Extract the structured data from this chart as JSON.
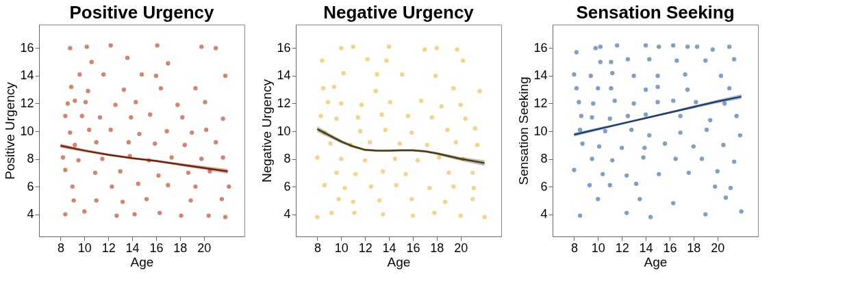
{
  "chart_data": [
    {
      "type": "scatter",
      "title": "Positive Urgency",
      "xlabel": "Age",
      "ylabel": "Positive Urgency",
      "xlim": [
        6.2,
        23.4
      ],
      "ylim": [
        2.4,
        17.7
      ],
      "xticks": [
        8,
        10,
        12,
        14,
        16,
        18,
        20
      ],
      "yticks": [
        4,
        6,
        8,
        10,
        12,
        14,
        16
      ],
      "grid": false,
      "series": [
        {
          "type": "scatter",
          "marker": "circle",
          "color": "#d4846a",
          "x": [
            8.8,
            10.2,
            12.2,
            16.1,
            19.8,
            21.0,
            13.6,
            10.6,
            17.0,
            9.6,
            11.6,
            14.8,
            16.0,
            21.8,
            8.9,
            10.3,
            13.3,
            16.4,
            19.3,
            8.6,
            9.2,
            10.1,
            12.6,
            14.3,
            17.8,
            20.1,
            8.4,
            9.8,
            11.3,
            13.9,
            15.5,
            18.2,
            21.6,
            8.8,
            10.4,
            12.2,
            14.6,
            16.9,
            19.0,
            20.2,
            9.2,
            11.0,
            13.7,
            15.9,
            18.4,
            21.0,
            8.2,
            9.5,
            11.5,
            13.8,
            15.4,
            17.3,
            19.8,
            21.6,
            8.4,
            10.9,
            13.0,
            16.2,
            18.7,
            20.5,
            9.0,
            12.3,
            14.5,
            17.0,
            19.3,
            22.1,
            9.1,
            11.0,
            13.2,
            15.2,
            18.9,
            21.5,
            8.4,
            10.0,
            12.7,
            14.2,
            16.3,
            18.1,
            20.4,
            21.8
          ],
          "values": [
            16.0,
            16.1,
            16.2,
            16.2,
            16.1,
            16.0,
            15.3,
            15.0,
            14.9,
            14.1,
            14.1,
            14.1,
            14.0,
            14.0,
            13.2,
            12.9,
            13.0,
            13.1,
            13.1,
            12.0,
            12.2,
            12.1,
            11.9,
            12.1,
            11.9,
            12.1,
            11.1,
            11.1,
            11.0,
            11.0,
            11.2,
            11.0,
            10.9,
            9.9,
            10.1,
            10.1,
            9.8,
            10.0,
            9.9,
            10.1,
            9.0,
            9.2,
            9.2,
            9.1,
            9.0,
            9.2,
            8.1,
            7.9,
            8.0,
            8.2,
            7.9,
            8.1,
            8.0,
            8.1,
            7.2,
            7.0,
            7.1,
            6.8,
            7.0,
            7.1,
            6.0,
            6.0,
            6.2,
            6.1,
            6.0,
            6.0,
            5.0,
            5.0,
            4.9,
            5.1,
            5.0,
            5.1,
            4.0,
            4.2,
            3.9,
            4.0,
            4.1,
            3.9,
            3.9,
            3.8
          ]
        },
        {
          "type": "line",
          "color": "#7a1f05",
          "x": [
            8,
            10,
            12,
            14,
            16,
            18,
            20,
            22
          ],
          "values": [
            8.95,
            8.6,
            8.3,
            8.05,
            7.85,
            7.6,
            7.35,
            7.1
          ],
          "lower": [
            8.8,
            8.5,
            8.22,
            7.98,
            7.77,
            7.5,
            7.22,
            6.93
          ],
          "upper": [
            9.1,
            8.7,
            8.38,
            8.12,
            7.93,
            7.7,
            7.48,
            7.27
          ]
        }
      ]
    },
    {
      "type": "scatter",
      "title": "Negative Urgency",
      "xlabel": "Age",
      "ylabel": "Negative Urgency",
      "xlim": [
        6.2,
        23.4
      ],
      "ylim": [
        2.4,
        17.7
      ],
      "xticks": [
        8,
        10,
        12,
        14,
        16,
        18,
        20
      ],
      "yticks": [
        4,
        6,
        8,
        10,
        12,
        14,
        16
      ],
      "grid": false,
      "series": [
        {
          "type": "scatter",
          "marker": "circle",
          "color": "#f4d48a",
          "x": [
            10.0,
            11.0,
            14.0,
            17.0,
            18.0,
            19.7,
            8.4,
            12.2,
            13.8,
            20.2,
            10.2,
            13.0,
            15.1,
            17.9,
            8.5,
            9.4,
            12.9,
            16.7,
            19.4,
            21.6,
            8.9,
            10.0,
            11.7,
            14.1,
            18.4,
            20.0,
            8.3,
            9.6,
            11.4,
            13.4,
            15.6,
            17.6,
            20.4,
            8.6,
            11.6,
            13.7,
            15.9,
            18.9,
            21.2,
            9.1,
            10.8,
            12.4,
            14.9,
            17.2,
            19.6,
            21.4,
            8.0,
            10.0,
            12.0,
            14.5,
            16.4,
            18.2,
            20.2,
            9.6,
            11.2,
            13.5,
            15.4,
            19.0,
            21.0,
            8.6,
            10.3,
            12.5,
            14.6,
            17.4,
            19.4,
            21.1,
            9.8,
            11.0,
            13.2,
            15.9,
            18.7,
            21.0,
            8.0,
            9.2,
            11.1,
            13.5,
            16.0,
            17.8,
            20.0,
            22.0
          ],
          "values": [
            16.0,
            16.1,
            16.1,
            15.9,
            16.0,
            15.9,
            15.1,
            15.2,
            15.1,
            15.1,
            14.2,
            14.1,
            14.1,
            14.0,
            13.1,
            13.2,
            12.9,
            12.2,
            13.1,
            12.9,
            12.1,
            12.0,
            11.9,
            12.1,
            11.8,
            11.9,
            11.1,
            10.9,
            11.0,
            11.2,
            11.1,
            11.0,
            10.9,
            9.9,
            10.0,
            10.1,
            9.9,
            10.1,
            10.2,
            9.1,
            9.0,
            9.2,
            9.1,
            9.0,
            9.2,
            9.0,
            8.1,
            8.0,
            7.9,
            8.0,
            7.9,
            8.1,
            8.0,
            7.0,
            6.9,
            7.1,
            6.9,
            7.0,
            7.0,
            6.1,
            5.9,
            6.0,
            6.1,
            5.9,
            6.0,
            5.9,
            5.1,
            4.9,
            5.0,
            5.1,
            4.9,
            5.1,
            3.8,
            4.1,
            4.1,
            4.0,
            3.9,
            4.1,
            3.9,
            3.8
          ]
        },
        {
          "type": "line",
          "color": "#4a3c12",
          "x": [
            8,
            9,
            10,
            11,
            12,
            13,
            14,
            15,
            16,
            17,
            18,
            19,
            20,
            21,
            22
          ],
          "values": [
            10.15,
            9.7,
            9.25,
            8.9,
            8.65,
            8.6,
            8.6,
            8.62,
            8.62,
            8.55,
            8.4,
            8.2,
            8.0,
            7.85,
            7.7
          ],
          "lower": [
            9.95,
            9.55,
            9.12,
            8.8,
            8.56,
            8.52,
            8.52,
            8.54,
            8.54,
            8.46,
            8.3,
            8.08,
            7.86,
            7.68,
            7.5
          ],
          "upper": [
            10.35,
            9.85,
            9.38,
            9.0,
            8.74,
            8.68,
            8.68,
            8.7,
            8.7,
            8.64,
            8.5,
            8.32,
            8.14,
            8.02,
            7.9
          ]
        }
      ]
    },
    {
      "type": "scatter",
      "title": "Sensation Seeking",
      "xlabel": "Age",
      "ylabel": "Sensation Seeking",
      "xlim": [
        6.2,
        23.4
      ],
      "ylim": [
        2.4,
        17.7
      ],
      "xticks": [
        8,
        10,
        12,
        14,
        16,
        18,
        20
      ],
      "yticks": [
        4,
        6,
        8,
        10,
        12,
        14,
        16
      ],
      "grid": false,
      "series": [
        {
          "type": "scatter",
          "marker": "circle",
          "color": "#7f9ec9",
          "x": [
            9.8,
            10.2,
            11.6,
            14.0,
            15.1,
            16.3,
            17.5,
            18.3,
            19.6,
            21.0,
            8.2,
            10.2,
            11.1,
            12.5,
            14.3,
            16.6,
            19.0,
            21.4,
            8.0,
            9.4,
            11.2,
            13.0,
            15.0,
            17.3,
            20.3,
            8.2,
            10.0,
            11.1,
            14.0,
            15.0,
            17.5,
            21.0,
            8.4,
            9.6,
            11.4,
            13.0,
            15.0,
            16.3,
            18.2,
            20.6,
            8.6,
            9.5,
            11.0,
            12.5,
            14.0,
            16.9,
            19.4,
            21.6,
            8.5,
            10.6,
            12.8,
            14.3,
            16.9,
            19.1,
            21.9,
            8.7,
            10.1,
            12.0,
            13.9,
            15.6,
            18.0,
            20.5,
            9.5,
            11.2,
            13.8,
            16.5,
            18.7,
            21.4,
            8.0,
            10.4,
            12.4,
            15.1,
            17.6,
            20.0,
            9.3,
            11.0,
            13.2,
            19.8,
            21.1,
            10.0,
            13.5,
            16.3,
            20.7,
            8.5,
            12.4,
            14.4,
            19.0,
            22.0
          ],
          "values": [
            16.0,
            16.1,
            16.2,
            16.2,
            16.1,
            16.2,
            16.1,
            16.1,
            15.9,
            16.1,
            15.7,
            15.0,
            15.0,
            15.2,
            15.2,
            15.1,
            15.1,
            15.2,
            14.1,
            14.0,
            14.2,
            14.0,
            14.0,
            14.1,
            14.0,
            13.1,
            13.1,
            13.1,
            13.0,
            13.2,
            13.0,
            13.1,
            12.1,
            12.0,
            12.2,
            12.0,
            12.1,
            12.2,
            12.1,
            12.0,
            11.1,
            11.0,
            10.9,
            11.1,
            11.2,
            11.1,
            10.8,
            11.1,
            10.1,
            10.0,
            10.1,
            9.7,
            9.9,
            10.1,
            9.7,
            9.1,
            8.9,
            8.8,
            8.8,
            9.1,
            8.9,
            9.0,
            8.0,
            7.9,
            8.1,
            8.0,
            8.0,
            7.8,
            7.2,
            6.9,
            6.8,
            6.9,
            7.0,
            7.1,
            6.1,
            6.1,
            6.2,
            6.0,
            5.9,
            5.1,
            5.1,
            4.8,
            5.2,
            3.9,
            4.1,
            3.8,
            4.0,
            4.2
          ]
        },
        {
          "type": "line",
          "color": "#1d3f6e",
          "x": [
            8,
            12,
            16,
            20,
            22
          ],
          "values": [
            9.75,
            10.55,
            11.35,
            12.15,
            12.5
          ],
          "lower": [
            9.62,
            10.47,
            11.27,
            12.03,
            12.33
          ],
          "upper": [
            9.88,
            10.63,
            11.43,
            12.27,
            12.67
          ]
        }
      ]
    }
  ]
}
